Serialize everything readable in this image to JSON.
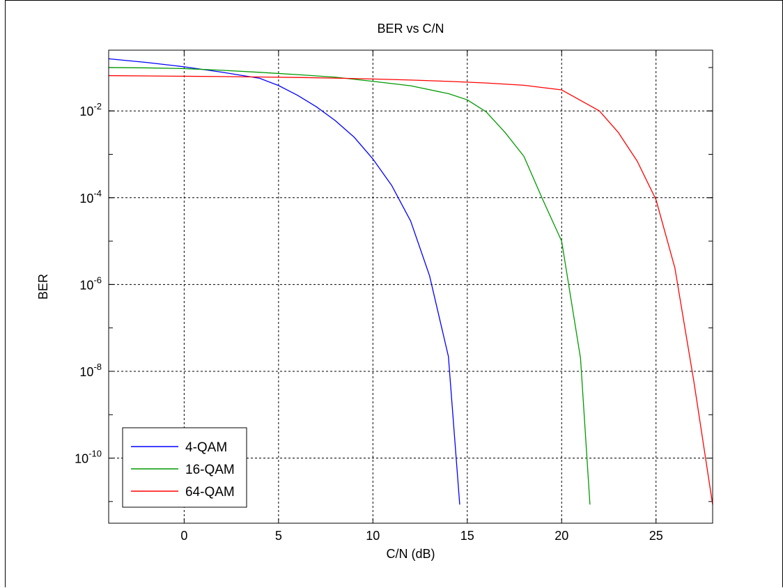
{
  "chart_data": {
    "type": "line",
    "title": "BER vs C/N",
    "xlabel": "C/N (dB)",
    "ylabel": "BER",
    "xlim": [
      -4,
      28
    ],
    "ylim_log10": [
      -11.5,
      -0.6
    ],
    "y_scale": "log",
    "grid": true,
    "legend_position": "bottom-left",
    "x_ticks": [
      0,
      5,
      10,
      15,
      20,
      25
    ],
    "x_tick_labels": [
      "0",
      "5",
      "10",
      "15",
      "20",
      "25"
    ],
    "y_ticks_log10": [
      -2,
      -4,
      -6,
      -8,
      -10
    ],
    "y_tick_labels": [
      {
        "base": "10",
        "exp": "-2"
      },
      {
        "base": "10",
        "exp": "-4"
      },
      {
        "base": "10",
        "exp": "-6"
      },
      {
        "base": "10",
        "exp": "-8"
      },
      {
        "base": "10",
        "exp": "-10"
      }
    ],
    "series": [
      {
        "name": "4-QAM",
        "color": "#0000ff",
        "x": [
          -4,
          -2,
          0,
          2,
          4,
          5,
          6,
          7,
          8,
          9,
          10,
          11,
          12,
          13,
          14,
          14.6
        ],
        "y": [
          0.159,
          0.131,
          0.104,
          0.078,
          0.0565,
          0.0385,
          0.023,
          0.0125,
          0.006,
          0.0025,
          0.00078,
          0.00019,
          2.9e-05,
          1.6e-06,
          2.2e-08,
          8.5e-12
        ]
      },
      {
        "name": "16-QAM",
        "color": "#009900",
        "x": [
          -4,
          -2,
          0,
          2,
          4,
          6,
          8,
          10,
          12,
          14,
          15,
          16,
          17,
          18,
          19,
          20,
          21,
          21.5
        ],
        "y": [
          0.1,
          0.098,
          0.0945,
          0.0865,
          0.0775,
          0.0685,
          0.06,
          0.048,
          0.038,
          0.025,
          0.018,
          0.0095,
          0.0032,
          0.0009,
          9e-05,
          1e-05,
          2e-08,
          8.5e-12
        ]
      },
      {
        "name": "64-QAM",
        "color": "#ff0000",
        "x": [
          -4,
          -2,
          0,
          2,
          4,
          6,
          8,
          10,
          12,
          14,
          16,
          18,
          20,
          22,
          23,
          24,
          25,
          26,
          27,
          28
        ],
        "y": [
          0.065,
          0.064,
          0.063,
          0.062,
          0.0605,
          0.059,
          0.057,
          0.0545,
          0.0515,
          0.048,
          0.044,
          0.039,
          0.0305,
          0.01,
          0.0032,
          0.0007,
          9e-05,
          2.4e-06,
          6e-09,
          8.5e-12
        ]
      }
    ]
  }
}
